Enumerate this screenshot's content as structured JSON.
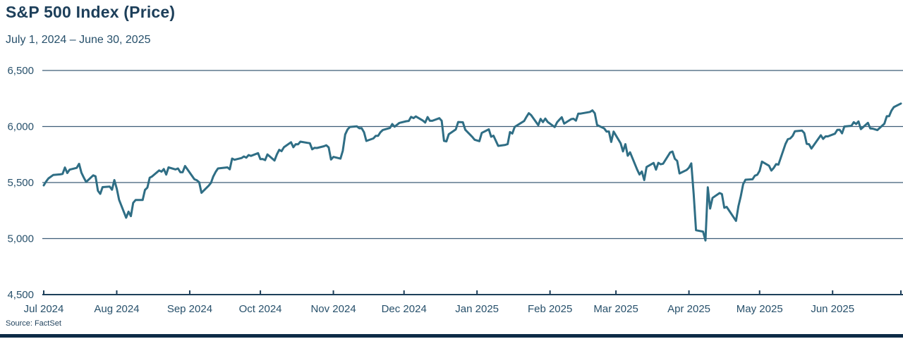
{
  "header": {
    "title": "S&P 500 Index (Price)",
    "subtitle": "July 1, 2024 – June 30, 2025"
  },
  "footer": {
    "source": "Source: FactSet"
  },
  "colors": {
    "text": "#1d3f5a",
    "axis_label": "#27506b",
    "line": "#2f6e85",
    "grid": "#3f5d78",
    "axis": "#1d3f5a",
    "bottom_bar": "#0d2b46",
    "background": "#ffffff"
  },
  "chart_data": {
    "type": "line",
    "title": "S&P 500 Index (Price)",
    "subtitle": "July 1, 2024 – June 30, 2025",
    "source": "Source: FactSet",
    "xlabel": "",
    "ylabel": "",
    "ylim": [
      4500,
      6500
    ],
    "yticks": [
      4500,
      5000,
      5500,
      6000,
      6500
    ],
    "ytick_labels": [
      "4,500",
      "5,000",
      "5,500",
      "6,000",
      "6,500"
    ],
    "x_range": [
      "2024-07-01",
      "2025-06-30"
    ],
    "xticks": [
      {
        "date": "2024-07-01",
        "label": "Jul 2024"
      },
      {
        "date": "2024-08-01",
        "label": "Aug 2024"
      },
      {
        "date": "2024-09-01",
        "label": "Sep 2024"
      },
      {
        "date": "2024-10-01",
        "label": "Oct 2024"
      },
      {
        "date": "2024-11-01",
        "label": "Nov 2024"
      },
      {
        "date": "2024-12-01",
        "label": "Dec 2024"
      },
      {
        "date": "2025-01-01",
        "label": "Jan 2025"
      },
      {
        "date": "2025-02-01",
        "label": "Feb 2025"
      },
      {
        "date": "2025-03-01",
        "label": "Mar 2025"
      },
      {
        "date": "2025-04-01",
        "label": "Apr 2025"
      },
      {
        "date": "2025-05-01",
        "label": "May 2025"
      },
      {
        "date": "2025-06-01",
        "label": "Jun 2025"
      },
      {
        "date": "2025-06-30",
        "label": ""
      }
    ],
    "grid": "horizontal",
    "legend": "none",
    "series": [
      {
        "name": "S&P 500 Index Price",
        "points": [
          [
            "2024-07-01",
            5475
          ],
          [
            "2024-07-02",
            5509
          ],
          [
            "2024-07-03",
            5537
          ],
          [
            "2024-07-05",
            5567
          ],
          [
            "2024-07-08",
            5573
          ],
          [
            "2024-07-09",
            5577
          ],
          [
            "2024-07-10",
            5634
          ],
          [
            "2024-07-11",
            5585
          ],
          [
            "2024-07-12",
            5615
          ],
          [
            "2024-07-15",
            5631
          ],
          [
            "2024-07-16",
            5667
          ],
          [
            "2024-07-17",
            5588
          ],
          [
            "2024-07-18",
            5545
          ],
          [
            "2024-07-19",
            5505
          ],
          [
            "2024-07-22",
            5564
          ],
          [
            "2024-07-23",
            5556
          ],
          [
            "2024-07-24",
            5427
          ],
          [
            "2024-07-25",
            5399
          ],
          [
            "2024-07-26",
            5459
          ],
          [
            "2024-07-29",
            5464
          ],
          [
            "2024-07-30",
            5436
          ],
          [
            "2024-07-31",
            5522
          ],
          [
            "2024-08-01",
            5446
          ],
          [
            "2024-08-02",
            5346
          ],
          [
            "2024-08-05",
            5186
          ],
          [
            "2024-08-06",
            5240
          ],
          [
            "2024-08-07",
            5200
          ],
          [
            "2024-08-08",
            5319
          ],
          [
            "2024-08-09",
            5344
          ],
          [
            "2024-08-12",
            5344
          ],
          [
            "2024-08-13",
            5434
          ],
          [
            "2024-08-14",
            5455
          ],
          [
            "2024-08-15",
            5543
          ],
          [
            "2024-08-16",
            5554
          ],
          [
            "2024-08-19",
            5608
          ],
          [
            "2024-08-20",
            5597
          ],
          [
            "2024-08-21",
            5620
          ],
          [
            "2024-08-22",
            5571
          ],
          [
            "2024-08-23",
            5635
          ],
          [
            "2024-08-26",
            5617
          ],
          [
            "2024-08-27",
            5626
          ],
          [
            "2024-08-28",
            5592
          ],
          [
            "2024-08-29",
            5592
          ],
          [
            "2024-08-30",
            5648
          ],
          [
            "2024-09-03",
            5529
          ],
          [
            "2024-09-04",
            5520
          ],
          [
            "2024-09-05",
            5503
          ],
          [
            "2024-09-06",
            5408
          ],
          [
            "2024-09-09",
            5471
          ],
          [
            "2024-09-10",
            5496
          ],
          [
            "2024-09-11",
            5554
          ],
          [
            "2024-09-12",
            5595
          ],
          [
            "2024-09-13",
            5626
          ],
          [
            "2024-09-16",
            5633
          ],
          [
            "2024-09-17",
            5635
          ],
          [
            "2024-09-18",
            5618
          ],
          [
            "2024-09-19",
            5714
          ],
          [
            "2024-09-20",
            5703
          ],
          [
            "2024-09-23",
            5719
          ],
          [
            "2024-09-24",
            5733
          ],
          [
            "2024-09-25",
            5722
          ],
          [
            "2024-09-26",
            5745
          ],
          [
            "2024-09-27",
            5738
          ],
          [
            "2024-09-30",
            5762
          ],
          [
            "2024-10-01",
            5709
          ],
          [
            "2024-10-02",
            5710
          ],
          [
            "2024-10-03",
            5700
          ],
          [
            "2024-10-04",
            5751
          ],
          [
            "2024-10-07",
            5696
          ],
          [
            "2024-10-08",
            5751
          ],
          [
            "2024-10-09",
            5792
          ],
          [
            "2024-10-10",
            5780
          ],
          [
            "2024-10-11",
            5815
          ],
          [
            "2024-10-14",
            5860
          ],
          [
            "2024-10-15",
            5815
          ],
          [
            "2024-10-16",
            5842
          ],
          [
            "2024-10-17",
            5841
          ],
          [
            "2024-10-18",
            5865
          ],
          [
            "2024-10-21",
            5854
          ],
          [
            "2024-10-22",
            5851
          ],
          [
            "2024-10-23",
            5797
          ],
          [
            "2024-10-24",
            5810
          ],
          [
            "2024-10-25",
            5808
          ],
          [
            "2024-10-28",
            5824
          ],
          [
            "2024-10-29",
            5833
          ],
          [
            "2024-10-30",
            5814
          ],
          [
            "2024-10-31",
            5705
          ],
          [
            "2024-11-01",
            5729
          ],
          [
            "2024-11-04",
            5713
          ],
          [
            "2024-11-05",
            5783
          ],
          [
            "2024-11-06",
            5929
          ],
          [
            "2024-11-07",
            5973
          ],
          [
            "2024-11-08",
            5996
          ],
          [
            "2024-11-11",
            6001
          ],
          [
            "2024-11-12",
            5984
          ],
          [
            "2024-11-13",
            5985
          ],
          [
            "2024-11-14",
            5949
          ],
          [
            "2024-11-15",
            5871
          ],
          [
            "2024-11-18",
            5894
          ],
          [
            "2024-11-19",
            5917
          ],
          [
            "2024-11-20",
            5917
          ],
          [
            "2024-11-21",
            5949
          ],
          [
            "2024-11-22",
            5969
          ],
          [
            "2024-11-25",
            5987
          ],
          [
            "2024-11-26",
            6022
          ],
          [
            "2024-11-27",
            5998
          ],
          [
            "2024-11-29",
            6032
          ],
          [
            "2024-12-02",
            6047
          ],
          [
            "2024-12-03",
            6050
          ],
          [
            "2024-12-04",
            6086
          ],
          [
            "2024-12-05",
            6075
          ],
          [
            "2024-12-06",
            6090
          ],
          [
            "2024-12-09",
            6053
          ],
          [
            "2024-12-10",
            6035
          ],
          [
            "2024-12-11",
            6084
          ],
          [
            "2024-12-12",
            6051
          ],
          [
            "2024-12-13",
            6051
          ],
          [
            "2024-12-16",
            6074
          ],
          [
            "2024-12-17",
            6051
          ],
          [
            "2024-12-18",
            5872
          ],
          [
            "2024-12-19",
            5867
          ],
          [
            "2024-12-20",
            5931
          ],
          [
            "2024-12-23",
            5974
          ],
          [
            "2024-12-24",
            6040
          ],
          [
            "2024-12-26",
            6038
          ],
          [
            "2024-12-27",
            5971
          ],
          [
            "2024-12-30",
            5907
          ],
          [
            "2024-12-31",
            5882
          ],
          [
            "2025-01-02",
            5869
          ],
          [
            "2025-01-03",
            5943
          ],
          [
            "2025-01-06",
            5975
          ],
          [
            "2025-01-07",
            5909
          ],
          [
            "2025-01-08",
            5918
          ],
          [
            "2025-01-10",
            5827
          ],
          [
            "2025-01-13",
            5836
          ],
          [
            "2025-01-14",
            5843
          ],
          [
            "2025-01-15",
            5950
          ],
          [
            "2025-01-16",
            5937
          ],
          [
            "2025-01-17",
            5997
          ],
          [
            "2025-01-21",
            6049
          ],
          [
            "2025-01-22",
            6086
          ],
          [
            "2025-01-23",
            6119
          ],
          [
            "2025-01-24",
            6101
          ],
          [
            "2025-01-27",
            6012
          ],
          [
            "2025-01-28",
            6068
          ],
          [
            "2025-01-29",
            6039
          ],
          [
            "2025-01-30",
            6071
          ],
          [
            "2025-01-31",
            6041
          ],
          [
            "2025-02-03",
            5995
          ],
          [
            "2025-02-04",
            6038
          ],
          [
            "2025-02-05",
            6061
          ],
          [
            "2025-02-06",
            6083
          ],
          [
            "2025-02-07",
            6026
          ],
          [
            "2025-02-10",
            6066
          ],
          [
            "2025-02-11",
            6069
          ],
          [
            "2025-02-12",
            6052
          ],
          [
            "2025-02-13",
            6115
          ],
          [
            "2025-02-14",
            6115
          ],
          [
            "2025-02-18",
            6130
          ],
          [
            "2025-02-19",
            6144
          ],
          [
            "2025-02-20",
            6118
          ],
          [
            "2025-02-21",
            6013
          ],
          [
            "2025-02-24",
            5983
          ],
          [
            "2025-02-25",
            5955
          ],
          [
            "2025-02-26",
            5956
          ],
          [
            "2025-02-27",
            5862
          ],
          [
            "2025-02-28",
            5955
          ],
          [
            "2025-03-03",
            5850
          ],
          [
            "2025-03-04",
            5778
          ],
          [
            "2025-03-05",
            5843
          ],
          [
            "2025-03-06",
            5739
          ],
          [
            "2025-03-07",
            5770
          ],
          [
            "2025-03-10",
            5615
          ],
          [
            "2025-03-11",
            5572
          ],
          [
            "2025-03-12",
            5599
          ],
          [
            "2025-03-13",
            5522
          ],
          [
            "2025-03-14",
            5639
          ],
          [
            "2025-03-17",
            5675
          ],
          [
            "2025-03-18",
            5615
          ],
          [
            "2025-03-19",
            5676
          ],
          [
            "2025-03-20",
            5663
          ],
          [
            "2025-03-21",
            5668
          ],
          [
            "2025-03-24",
            5768
          ],
          [
            "2025-03-25",
            5777
          ],
          [
            "2025-03-26",
            5712
          ],
          [
            "2025-03-27",
            5693
          ],
          [
            "2025-03-28",
            5581
          ],
          [
            "2025-03-31",
            5612
          ],
          [
            "2025-04-01",
            5633
          ],
          [
            "2025-04-02",
            5671
          ],
          [
            "2025-04-03",
            5396
          ],
          [
            "2025-04-04",
            5074
          ],
          [
            "2025-04-07",
            5062
          ],
          [
            "2025-04-08",
            4983
          ],
          [
            "2025-04-09",
            5457
          ],
          [
            "2025-04-10",
            5268
          ],
          [
            "2025-04-11",
            5363
          ],
          [
            "2025-04-14",
            5406
          ],
          [
            "2025-04-15",
            5397
          ],
          [
            "2025-04-16",
            5275
          ],
          [
            "2025-04-17",
            5283
          ],
          [
            "2025-04-21",
            5158
          ],
          [
            "2025-04-22",
            5288
          ],
          [
            "2025-04-23",
            5376
          ],
          [
            "2025-04-24",
            5485
          ],
          [
            "2025-04-25",
            5525
          ],
          [
            "2025-04-28",
            5529
          ],
          [
            "2025-04-29",
            5561
          ],
          [
            "2025-04-30",
            5569
          ],
          [
            "2025-05-01",
            5604
          ],
          [
            "2025-05-02",
            5687
          ],
          [
            "2025-05-05",
            5650
          ],
          [
            "2025-05-06",
            5607
          ],
          [
            "2025-05-07",
            5631
          ],
          [
            "2025-05-08",
            5664
          ],
          [
            "2025-05-09",
            5660
          ],
          [
            "2025-05-12",
            5844
          ],
          [
            "2025-05-13",
            5887
          ],
          [
            "2025-05-14",
            5893
          ],
          [
            "2025-05-15",
            5916
          ],
          [
            "2025-05-16",
            5958
          ],
          [
            "2025-05-19",
            5964
          ],
          [
            "2025-05-20",
            5941
          ],
          [
            "2025-05-21",
            5845
          ],
          [
            "2025-05-22",
            5842
          ],
          [
            "2025-05-23",
            5803
          ],
          [
            "2025-05-27",
            5922
          ],
          [
            "2025-05-28",
            5889
          ],
          [
            "2025-05-29",
            5912
          ],
          [
            "2025-05-30",
            5912
          ],
          [
            "2025-06-02",
            5936
          ],
          [
            "2025-06-03",
            5970
          ],
          [
            "2025-06-04",
            5971
          ],
          [
            "2025-06-05",
            5939
          ],
          [
            "2025-06-06",
            6000
          ],
          [
            "2025-06-09",
            6006
          ],
          [
            "2025-06-10",
            6039
          ],
          [
            "2025-06-11",
            6022
          ],
          [
            "2025-06-12",
            6045
          ],
          [
            "2025-06-13",
            5977
          ],
          [
            "2025-06-16",
            6033
          ],
          [
            "2025-06-17",
            5983
          ],
          [
            "2025-06-18",
            5981
          ],
          [
            "2025-06-20",
            5968
          ],
          [
            "2025-06-23",
            6025
          ],
          [
            "2025-06-24",
            6092
          ],
          [
            "2025-06-25",
            6092
          ],
          [
            "2025-06-26",
            6141
          ],
          [
            "2025-06-27",
            6173
          ],
          [
            "2025-06-30",
            6205
          ]
        ]
      }
    ]
  }
}
